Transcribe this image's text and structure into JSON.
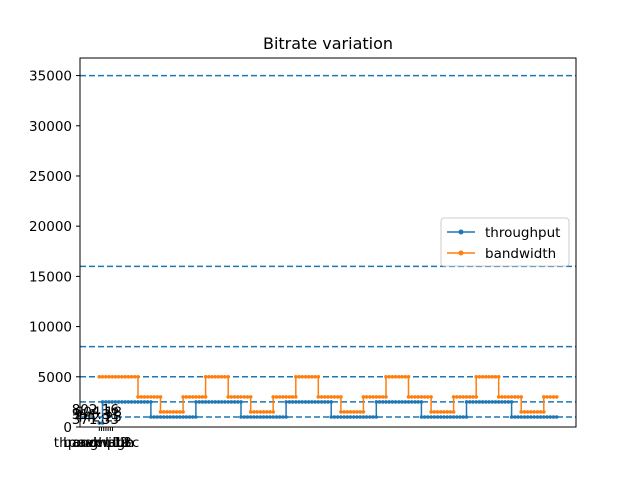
{
  "chart_data": {
    "type": "line",
    "title": "Bitrate variation",
    "xlabel": "",
    "ylabel": "",
    "ylim": [
      0,
      36750
    ],
    "yticks": [
      0,
      5000,
      10000,
      15000,
      20000,
      25000,
      30000,
      35000
    ],
    "xticks": [
      "peak",
      "throughput",
      "bandwidth",
      "average",
      "L1",
      "L2",
      "L3c"
    ],
    "point_annotations": [
      "802.16",
      "604.18",
      "511.31",
      "442.25",
      "371.33"
    ],
    "reference_lines": [
      1000,
      2500,
      5000,
      8000,
      16000,
      35000
    ],
    "grid": false,
    "legend_position": "center-right",
    "series": [
      {
        "name": "throughput",
        "color": "#1f77b4",
        "segments": [
          {
            "x": [
              1,
              2,
              3,
              4,
              5,
              6,
              7,
              8,
              9,
              10,
              11,
              12,
              13,
              14,
              15,
              16
            ],
            "y": [
              1000,
              1000,
              1000,
              1000,
              1000,
              1000,
              1000,
              1000,
              1000,
              1000,
              1000,
              1000,
              1000,
              1000,
              1000,
              1000
            ]
          },
          {
            "x": [
              17,
              18,
              19,
              20,
              21,
              22,
              23,
              24,
              25,
              26,
              27,
              28,
              29,
              30,
              31,
              32,
              33,
              34
            ],
            "y": [
              2500,
              2500,
              2500,
              2500,
              2500,
              2500,
              2500,
              2500,
              2500,
              2500,
              2500,
              2500,
              2500,
              2500,
              2500,
              2500,
              2500,
              2500
            ]
          }
        ],
        "y_levels": [
          400,
          2500,
          1000,
          2500,
          1000,
          2500,
          1000,
          2500,
          1000,
          2500,
          1000
        ],
        "level_x_ranges": [
          [
            0,
            1
          ],
          [
            1,
            16
          ],
          [
            16,
            30
          ],
          [
            30,
            44
          ],
          [
            44,
            58
          ],
          [
            58,
            72
          ],
          [
            72,
            86
          ],
          [
            86,
            100
          ],
          [
            100,
            114
          ],
          [
            114,
            128
          ],
          [
            128,
            142
          ]
        ]
      },
      {
        "name": "bandwidth",
        "color": "#ff7f0e",
        "y_levels": [
          5000,
          3000,
          1500,
          3000,
          5000,
          3000,
          1500,
          3000,
          5000,
          3000,
          1500,
          3000,
          5000,
          3000,
          1500,
          3000,
          5000,
          3000,
          1500,
          3000
        ],
        "level_x_ranges": [
          [
            0,
            12
          ],
          [
            12,
            19
          ],
          [
            19,
            26
          ],
          [
            26,
            33
          ],
          [
            33,
            40
          ],
          [
            40,
            47
          ],
          [
            47,
            54
          ],
          [
            54,
            61
          ],
          [
            61,
            68
          ],
          [
            68,
            75
          ],
          [
            75,
            82
          ],
          [
            82,
            89
          ],
          [
            89,
            96
          ],
          [
            96,
            103
          ],
          [
            103,
            110
          ],
          [
            110,
            117
          ],
          [
            117,
            124
          ],
          [
            124,
            131
          ],
          [
            131,
            138
          ],
          [
            138,
            142
          ]
        ]
      }
    ],
    "x_range": [
      -6,
      148
    ]
  }
}
